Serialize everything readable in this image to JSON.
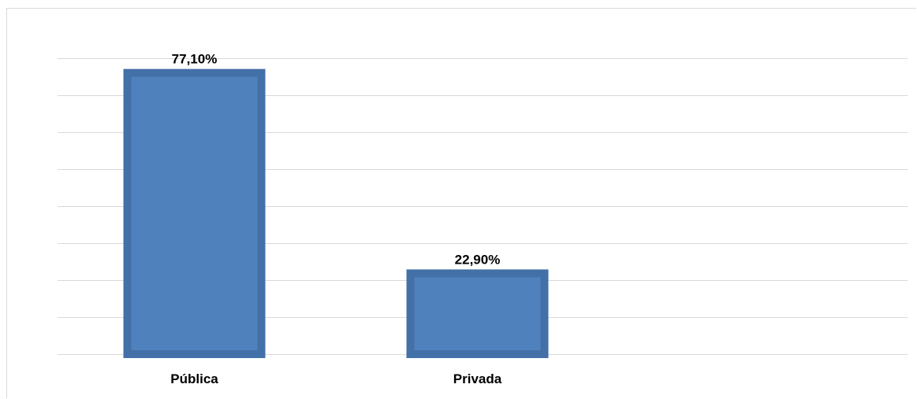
{
  "chart_data": {
    "type": "bar",
    "categories": [
      "Pública",
      "Privada"
    ],
    "values": [
      77.1,
      22.9
    ],
    "value_labels": [
      "77,10%",
      "22,90%"
    ],
    "ylim": [
      0,
      80
    ],
    "grid": true,
    "legend": "none",
    "colors": {
      "bar_fill": "#4f81bd",
      "bar_edge": "#4470a8",
      "grid": "#d9d9d9"
    }
  }
}
